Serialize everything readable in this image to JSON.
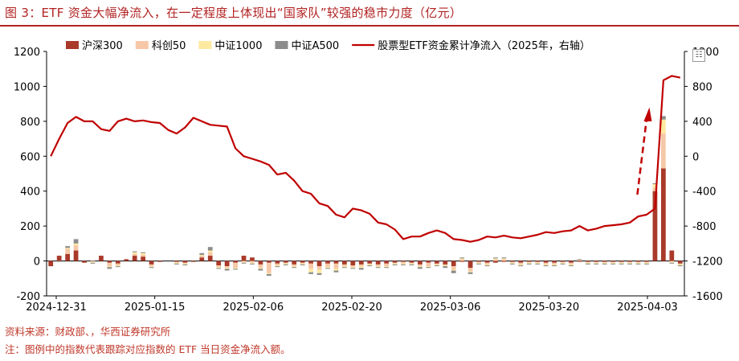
{
  "title": "图 3：ETF 资金大幅净流入，在一定程度上体现出“国家队”较强的稳市力度（亿元）",
  "source": "资料来源：财政部、，华西证券研究所",
  "footnote": "注：图例中的指数代表跟踪对应指数的 ETF 当日资金净流入额。",
  "menu_icon": "chart-menu-icon",
  "chart_data": {
    "type": "bar",
    "combo": "stacked bars (left axis) + line (right axis)",
    "x_tick_labels": [
      "2024-12-31",
      "2025-01-15",
      "2025-02-06",
      "2025-02-20",
      "2025-03-06",
      "2025-03-20",
      "2025-04-03"
    ],
    "y_left": {
      "ticks": [
        -200,
        0,
        200,
        400,
        600,
        800,
        1000,
        1200
      ],
      "ylim": [
        -200,
        1200
      ]
    },
    "y_right": {
      "ticks": [
        -1600,
        -1200,
        -800,
        -400,
        0,
        400,
        800,
        1200
      ],
      "ylim": [
        -1600,
        1200
      ],
      "label": ""
    },
    "colors": {
      "hs300": "#a93a2a",
      "kc50": "#f6c8a8",
      "zz1000": "#fde9a0",
      "a500": "#8c8c8c",
      "line": "#c00000",
      "arrow": "#c00000"
    },
    "legend_position": "top",
    "legend": [
      "沪深300",
      "科创50",
      "中证1000",
      "中证A500",
      "股票型ETF资金累计净流入（2025年，右轴）"
    ],
    "series": [
      {
        "name": "沪深300",
        "values": [
          -30,
          30,
          40,
          60,
          -10,
          0,
          30,
          -10,
          -15,
          10,
          30,
          25,
          -20,
          -5,
          0,
          -5,
          -10,
          -5,
          20,
          30,
          -25,
          -30,
          -10,
          30,
          20,
          -20,
          -10,
          -15,
          -10,
          -20,
          -10,
          -15,
          -30,
          -15,
          -15,
          -20,
          -25,
          -20,
          -15,
          -20,
          -15,
          -10,
          -5,
          -10,
          -20,
          -10,
          -15,
          -20,
          -30,
          -5,
          -40,
          -5,
          -10,
          -10,
          -5,
          -5,
          -10,
          -5,
          -5,
          -10,
          -10,
          -5,
          -10,
          -5,
          -5,
          -5,
          -5,
          -5,
          -5,
          -5,
          -5,
          -5,
          400,
          530,
          60,
          -15
        ]
      },
      {
        "name": "科创50",
        "values": [
          0,
          0,
          30,
          30,
          0,
          -5,
          0,
          -20,
          -10,
          0,
          10,
          10,
          -10,
          0,
          0,
          -5,
          -5,
          0,
          10,
          20,
          -10,
          -10,
          -30,
          -5,
          -10,
          -20,
          -60,
          -10,
          -5,
          -10,
          -5,
          -30,
          -20,
          -20,
          -30,
          -10,
          -10,
          -10,
          -5,
          -10,
          -15,
          -5,
          -10,
          -5,
          -10,
          -20,
          -5,
          -5,
          -20,
          10,
          -20,
          -5,
          -10,
          10,
          10,
          -5,
          -10,
          -5,
          -5,
          -10,
          -10,
          -5,
          -10,
          5,
          -5,
          -5,
          -5,
          -5,
          -5,
          -5,
          -5,
          -5,
          20,
          200,
          -5,
          -5
        ]
      },
      {
        "name": "中证1000",
        "values": [
          0,
          0,
          5,
          10,
          0,
          -5,
          0,
          -5,
          -5,
          0,
          10,
          10,
          -5,
          0,
          0,
          -5,
          -5,
          0,
          5,
          10,
          -5,
          -5,
          -5,
          -5,
          -5,
          -5,
          -5,
          -5,
          -5,
          -5,
          -5,
          -20,
          -20,
          -5,
          -10,
          -5,
          -5,
          -10,
          -5,
          -5,
          -5,
          -5,
          -5,
          -5,
          -5,
          -5,
          -5,
          -5,
          -5,
          5,
          -5,
          -5,
          -5,
          5,
          5,
          -5,
          -5,
          -5,
          -5,
          -5,
          -5,
          -5,
          -5,
          0,
          -5,
          -5,
          -5,
          -5,
          -5,
          -5,
          -5,
          -5,
          20,
          80,
          -5,
          -5
        ]
      },
      {
        "name": "中证A500",
        "values": [
          0,
          -5,
          10,
          25,
          0,
          -5,
          0,
          -10,
          -5,
          0,
          5,
          5,
          -5,
          0,
          0,
          -5,
          -5,
          0,
          10,
          20,
          -5,
          -10,
          -5,
          -5,
          -5,
          -10,
          -10,
          -5,
          -5,
          -5,
          -5,
          -10,
          -10,
          -5,
          -10,
          -5,
          -5,
          -10,
          -5,
          -5,
          -5,
          -5,
          -5,
          -5,
          -10,
          -5,
          -5,
          -10,
          -15,
          5,
          -10,
          -5,
          -5,
          5,
          5,
          -5,
          -5,
          -5,
          -5,
          -5,
          -5,
          -5,
          -5,
          5,
          -5,
          -5,
          -5,
          -5,
          -5,
          -5,
          -5,
          -5,
          5,
          20,
          -5,
          -5
        ]
      },
      {
        "name": "股票型ETF资金累计净流入（2025年，右轴）",
        "axis": "right",
        "values": [
          0,
          200,
          380,
          450,
          400,
          400,
          310,
          290,
          400,
          430,
          400,
          410,
          390,
          380,
          300,
          260,
          330,
          440,
          400,
          360,
          350,
          340,
          90,
          0,
          -30,
          -60,
          -100,
          -210,
          -190,
          -280,
          -400,
          -430,
          -540,
          -570,
          -670,
          -700,
          -600,
          -620,
          -660,
          -760,
          -780,
          -840,
          -950,
          -920,
          -920,
          -880,
          -850,
          -880,
          -950,
          -960,
          -980,
          -960,
          -920,
          -930,
          -910,
          -930,
          -940,
          -920,
          -900,
          -870,
          -880,
          -860,
          -850,
          -800,
          -850,
          -830,
          -800,
          -790,
          -780,
          -760,
          -690,
          -670,
          -600,
          870,
          920,
          900
        ]
      }
    ]
  }
}
